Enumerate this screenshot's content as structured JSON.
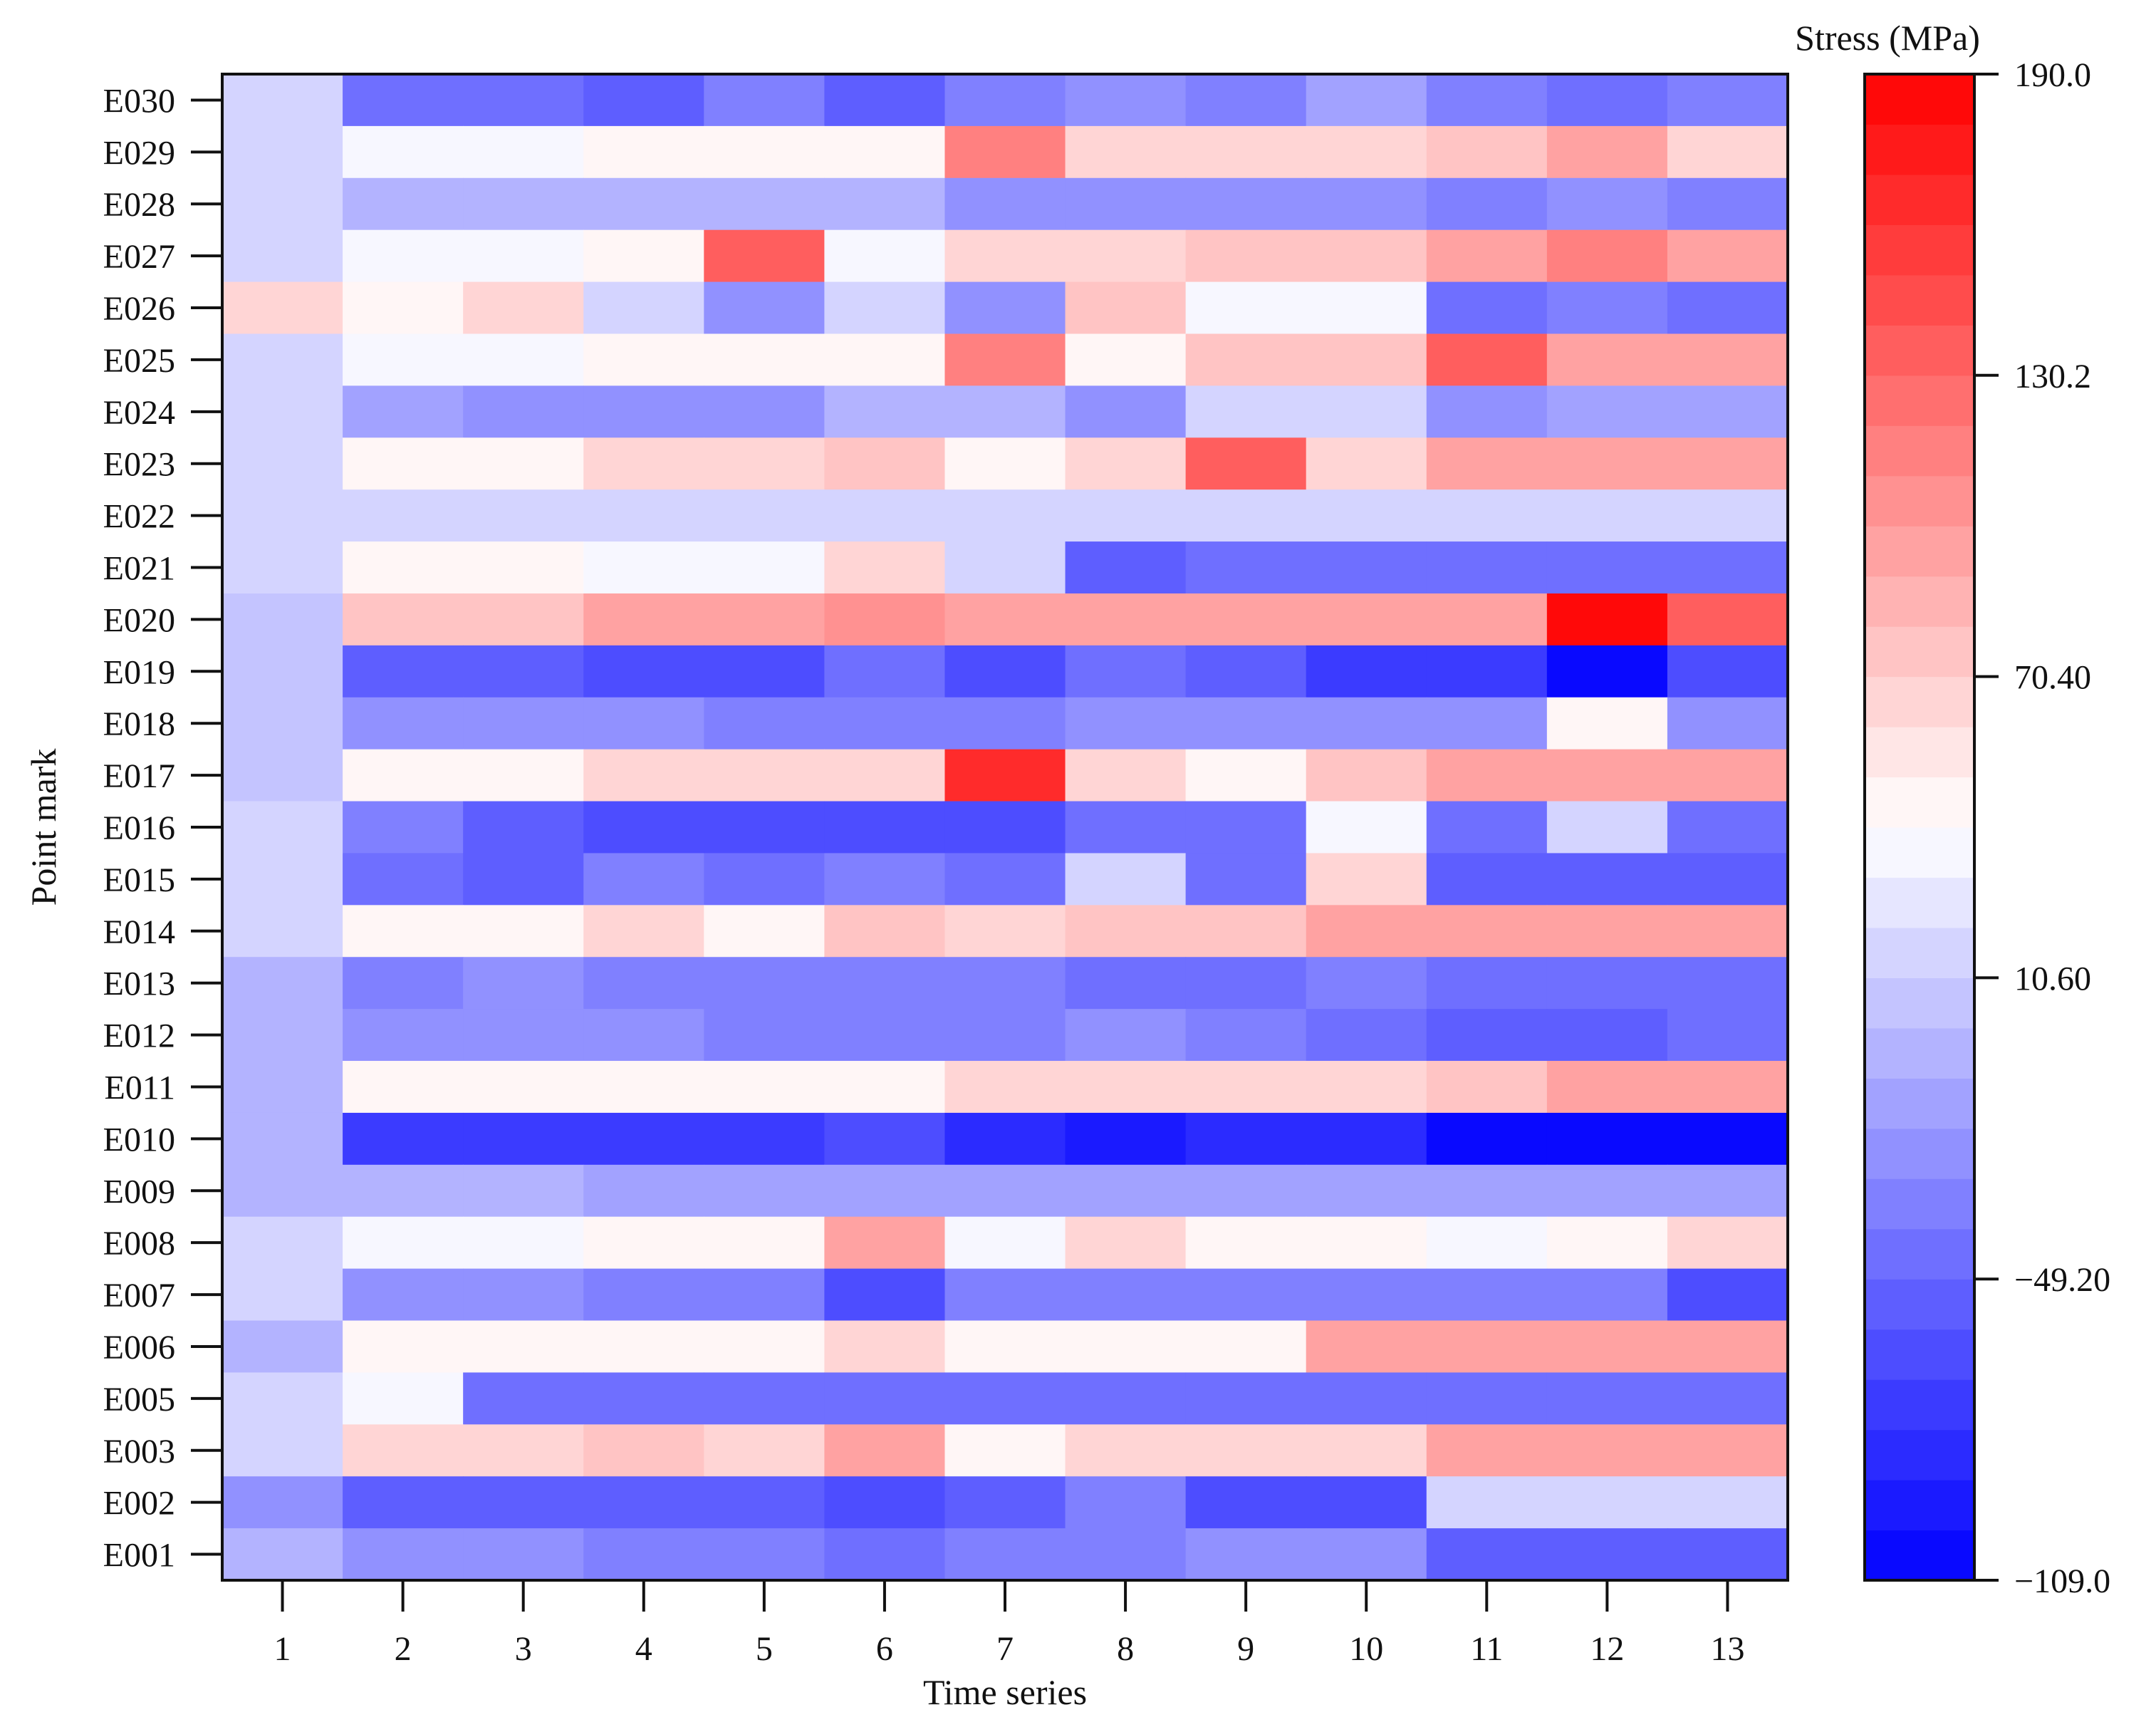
{
  "chart_data": {
    "type": "heatmap",
    "title": "",
    "xlabel": "Time series",
    "ylabel": "Point mark",
    "colorbar_label": "Stress (MPa)",
    "colorbar_ticks": [
      "190.0",
      "130.2",
      "70.40",
      "10.60",
      "−49.20",
      "−109.0"
    ],
    "color_range": [
      -109,
      190
    ],
    "color_levels": 30,
    "colors": {
      "low": "#0000ff",
      "mid": "#ffffff",
      "high": "#ff0000",
      "mid_value": 40.5
    },
    "x": [
      "1",
      "2",
      "3",
      "4",
      "5",
      "6",
      "7",
      "8",
      "9",
      "10",
      "11",
      "12",
      "13"
    ],
    "y": [
      "E030",
      "E029",
      "E028",
      "E027",
      "E026",
      "E025",
      "E024",
      "E023",
      "E022",
      "E021",
      "E020",
      "E019",
      "E018",
      "E017",
      "E016",
      "E015",
      "E014",
      "E013",
      "E012",
      "E011",
      "E010",
      "E009",
      "E008",
      "E007",
      "E006",
      "E005",
      "E003",
      "E002",
      "E001"
    ],
    "values": [
      [
        13,
        -40,
        -40,
        -55,
        -34,
        -55,
        -34,
        -20,
        -34,
        -13,
        -34,
        -49,
        -34
      ],
      [
        13,
        34,
        34,
        50,
        50,
        50,
        115,
        64,
        64,
        64,
        80,
        95,
        70
      ],
      [
        13,
        -6,
        -6,
        -6,
        -6,
        -6,
        -27,
        -27,
        -27,
        -27,
        -34,
        -27,
        -34
      ],
      [
        13,
        34,
        34,
        50,
        140,
        34,
        64,
        64,
        80,
        80,
        100,
        115,
        100
      ],
      [
        64,
        50,
        64,
        20,
        -20,
        20,
        -20,
        80,
        34,
        34,
        -49,
        -34,
        -49
      ],
      [
        13,
        34,
        34,
        50,
        50,
        50,
        115,
        50,
        80,
        80,
        140,
        95,
        100
      ],
      [
        13,
        -13,
        -20,
        -20,
        -20,
        -6,
        -6,
        -20,
        20,
        20,
        -20,
        -13,
        -13
      ],
      [
        13,
        50,
        50,
        64,
        64,
        80,
        50,
        64,
        140,
        64,
        95,
        95,
        95
      ],
      [
        20,
        20,
        20,
        20,
        20,
        20,
        20,
        20,
        20,
        20,
        20,
        20,
        20
      ],
      [
        20,
        50,
        50,
        34,
        34,
        64,
        20,
        -55,
        -49,
        -49,
        -49,
        -49,
        -49
      ],
      [
        6,
        80,
        80,
        95,
        95,
        110,
        100,
        100,
        95,
        95,
        95,
        190,
        140
      ],
      [
        6,
        -55,
        -55,
        -63,
        -63,
        -49,
        -63,
        -49,
        -55,
        -70,
        -70,
        -109,
        -63
      ],
      [
        6,
        -20,
        -20,
        -20,
        -34,
        -34,
        -34,
        -20,
        -20,
        -27,
        -27,
        50,
        -27
      ],
      [
        6,
        50,
        50,
        64,
        64,
        64,
        165,
        64,
        50,
        80,
        95,
        95,
        95
      ],
      [
        13,
        -34,
        -55,
        -63,
        -63,
        -63,
        -63,
        -49,
        -49,
        34,
        -49,
        20,
        -49
      ],
      [
        20,
        -49,
        -55,
        -34,
        -49,
        -34,
        -49,
        13,
        -49,
        64,
        -55,
        -55,
        -55
      ],
      [
        13,
        50,
        50,
        64,
        50,
        80,
        64,
        80,
        80,
        95,
        95,
        95,
        95
      ],
      [
        -6,
        -34,
        -27,
        -34,
        -34,
        -34,
        -34,
        -49,
        -49,
        -34,
        -49,
        -49,
        -49
      ],
      [
        -6,
        -27,
        -27,
        -27,
        -34,
        -34,
        -34,
        -20,
        -34,
        -49,
        -55,
        -55,
        -49
      ],
      [
        -6,
        50,
        50,
        50,
        50,
        50,
        64,
        64,
        64,
        64,
        80,
        95,
        100
      ],
      [
        -6,
        -70,
        -70,
        -77,
        -70,
        -63,
        -84,
        -91,
        -84,
        -84,
        -109,
        -109,
        -109
      ],
      [
        -6,
        -6,
        -6,
        -13,
        -13,
        -13,
        -13,
        -13,
        -13,
        -13,
        -13,
        -13,
        -13
      ],
      [
        13,
        34,
        34,
        50,
        50,
        95,
        34,
        64,
        50,
        50,
        34,
        50,
        70
      ],
      [
        13,
        -27,
        -27,
        -34,
        -34,
        -63,
        -34,
        -34,
        -34,
        -34,
        -34,
        -34,
        -63
      ],
      [
        -6,
        50,
        50,
        50,
        50,
        64,
        50,
        50,
        50,
        95,
        95,
        100,
        100
      ],
      [
        13,
        34,
        -49,
        -49,
        -49,
        -49,
        -49,
        -49,
        -49,
        -49,
        -49,
        -49,
        -49
      ],
      [
        13,
        64,
        64,
        80,
        64,
        95,
        50,
        64,
        64,
        64,
        100,
        100,
        100
      ],
      [
        -20,
        -55,
        -55,
        -55,
        -55,
        -63,
        -55,
        -34,
        -63,
        -63,
        20,
        20,
        13
      ],
      [
        -6,
        -27,
        -27,
        -34,
        -34,
        -49,
        -34,
        -34,
        -20,
        -20,
        -55,
        -55,
        -55
      ]
    ]
  }
}
